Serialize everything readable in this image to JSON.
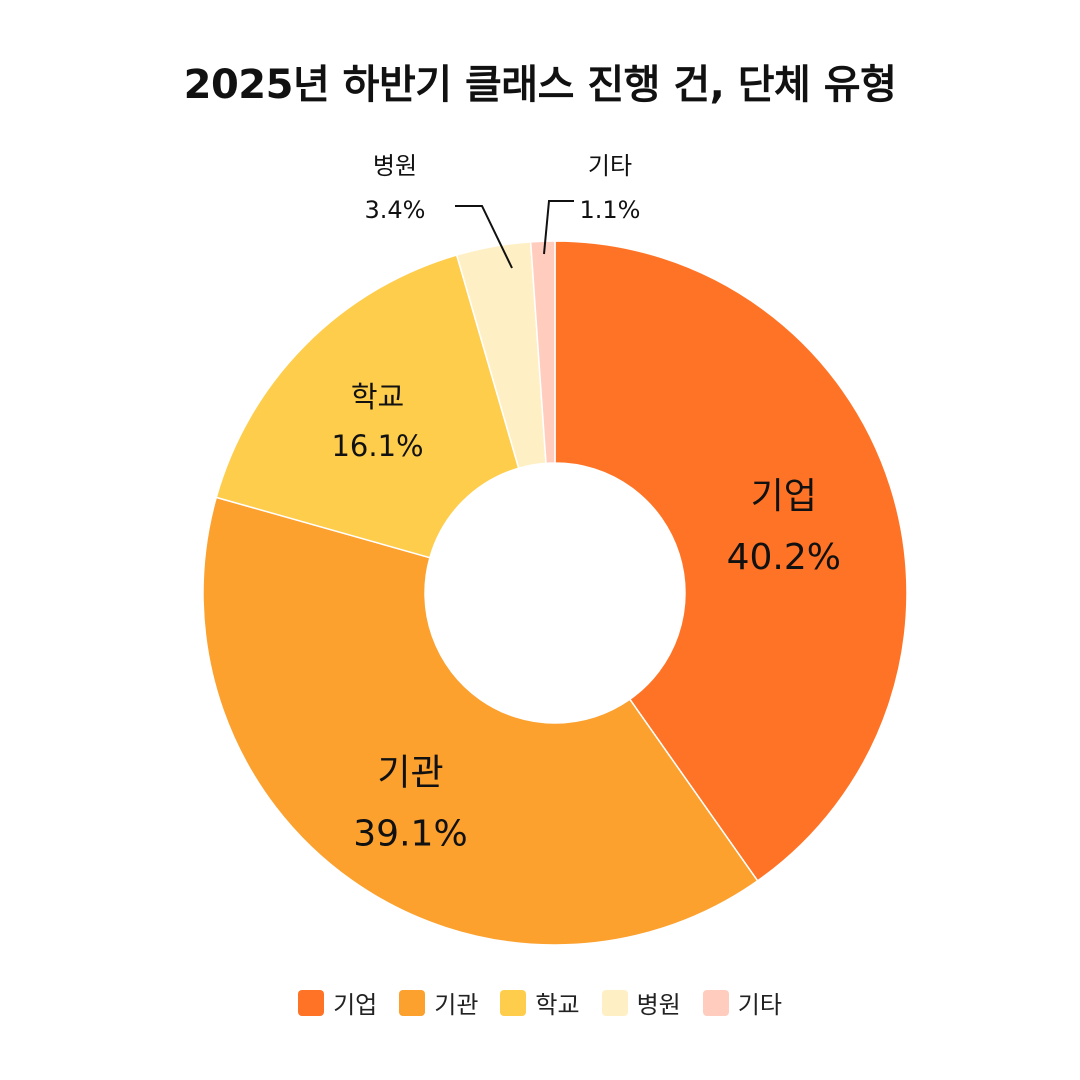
{
  "chart_data": {
    "type": "pie",
    "title": "2025년 하반기 클래스 진행 건, 단체 유형",
    "donut": true,
    "categories": [
      "기업",
      "기관",
      "학교",
      "병원",
      "기타"
    ],
    "values": [
      40.2,
      39.1,
      16.1,
      3.4,
      1.1
    ],
    "labels": [
      "40.2%",
      "39.1%",
      "16.1%",
      "3.4%",
      "1.1%"
    ],
    "colors": [
      "#FF7326",
      "#FCA02E",
      "#FECD4C",
      "#FFEFC4",
      "#FFCCBE"
    ],
    "legend": "bottom"
  }
}
